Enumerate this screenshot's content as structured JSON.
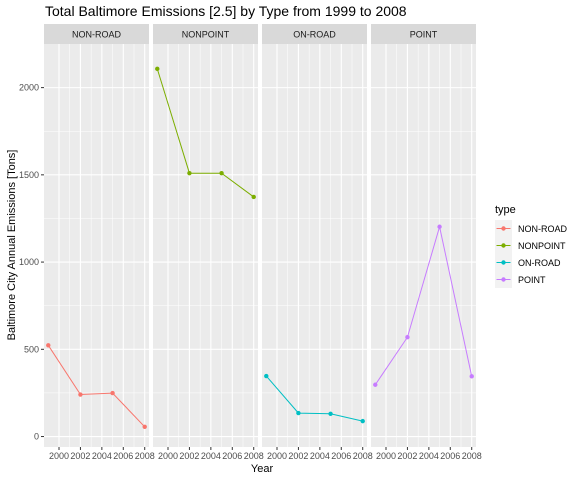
{
  "chart_data": {
    "type": "line",
    "title": "Total Baltimore Emissions [2.5] by Type from 1999 to 2008",
    "xlabel": "Year",
    "ylabel": "Baltimore City Annual Emissions [Tons]",
    "xlim": [
      1998.6,
      2008.4
    ],
    "ylim": [
      -60,
      2250
    ],
    "x_ticks": [
      2000,
      2002,
      2004,
      2006,
      2008
    ],
    "y_ticks": [
      0,
      500,
      1000,
      1500,
      2000
    ],
    "facet_by": "type",
    "grid": true,
    "legend": {
      "title": "type",
      "position": "right"
    },
    "x": [
      1999,
      2002,
      2005,
      2008
    ],
    "series": [
      {
        "name": "NON-ROAD",
        "color": "#F8766D",
        "values": [
          522.94,
          240.85,
          248.93,
          55.82
        ]
      },
      {
        "name": "NONPOINT",
        "color": "#7CAE00",
        "values": [
          2107.63,
          1509.5,
          1509.5,
          1373.21
        ]
      },
      {
        "name": "ON-ROAD",
        "color": "#00BFC4",
        "values": [
          346.82,
          134.31,
          130.43,
          88.28
        ]
      },
      {
        "name": "POINT",
        "color": "#C77CFF",
        "values": [
          296.8,
          569.26,
          1202.49,
          344.98
        ]
      }
    ]
  }
}
